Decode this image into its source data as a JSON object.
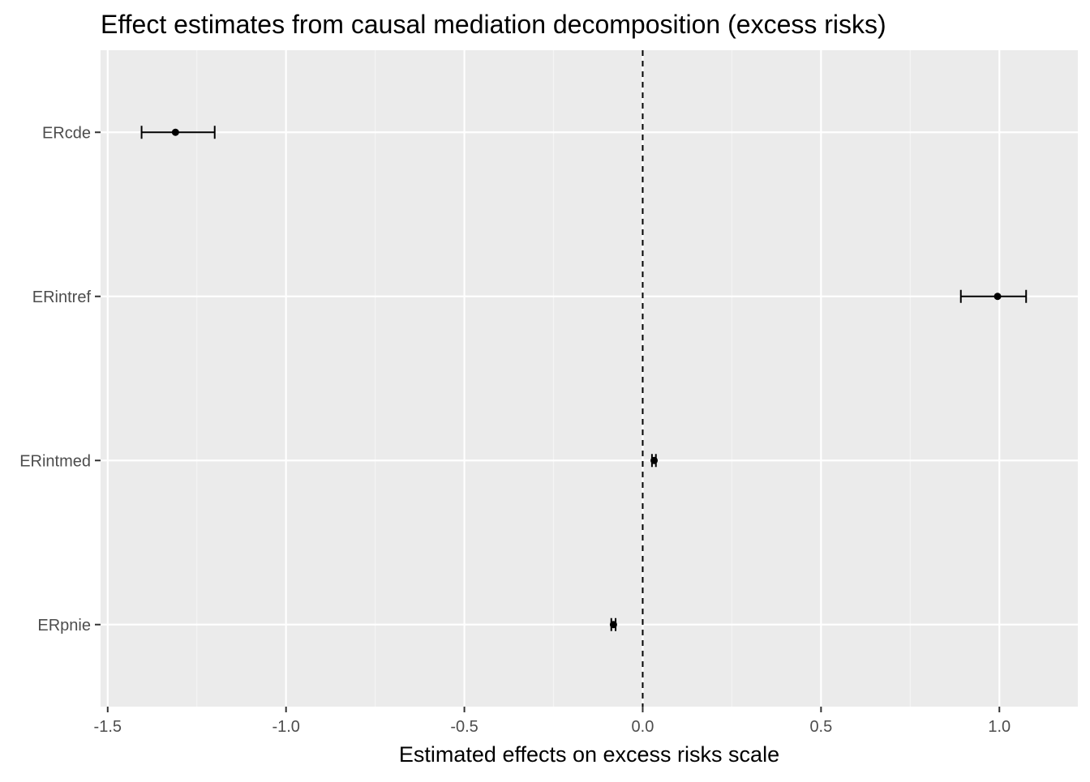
{
  "chart_data": {
    "type": "scatter",
    "title": "Effect estimates from causal mediation decomposition (excess risks)",
    "xlabel": "Estimated effects on excess risks scale",
    "ylabel": "",
    "xlim": [
      -1.52,
      1.22
    ],
    "x_ticks": [
      -1.5,
      -1.0,
      -0.5,
      0.0,
      0.5,
      1.0
    ],
    "x_tick_labels": [
      "-1.5",
      "-1.0",
      "-0.5",
      "0.0",
      "0.5",
      "1.0"
    ],
    "x_minor_ticks": [
      -1.25,
      -0.75,
      -0.25,
      0.25,
      0.75
    ],
    "categories": [
      "ERcde",
      "ERintref",
      "ERintmed",
      "ERpnie"
    ],
    "estimates": [
      -1.31,
      0.995,
      0.032,
      -0.082
    ],
    "ci_lower": [
      -1.405,
      0.892,
      0.026,
      -0.088
    ],
    "ci_upper": [
      -1.2,
      1.075,
      0.037,
      -0.076
    ],
    "reference_line_x": 0.0,
    "grid": true,
    "legend": "none",
    "colors": {
      "panel_background": "#ebebeb",
      "grid_major": "#ffffff",
      "grid_minor": "#f5f5f5",
      "points": "#000000",
      "reference_line": "#000000",
      "tick_labels": "#4d4d4d",
      "ticks": "#333333"
    }
  }
}
